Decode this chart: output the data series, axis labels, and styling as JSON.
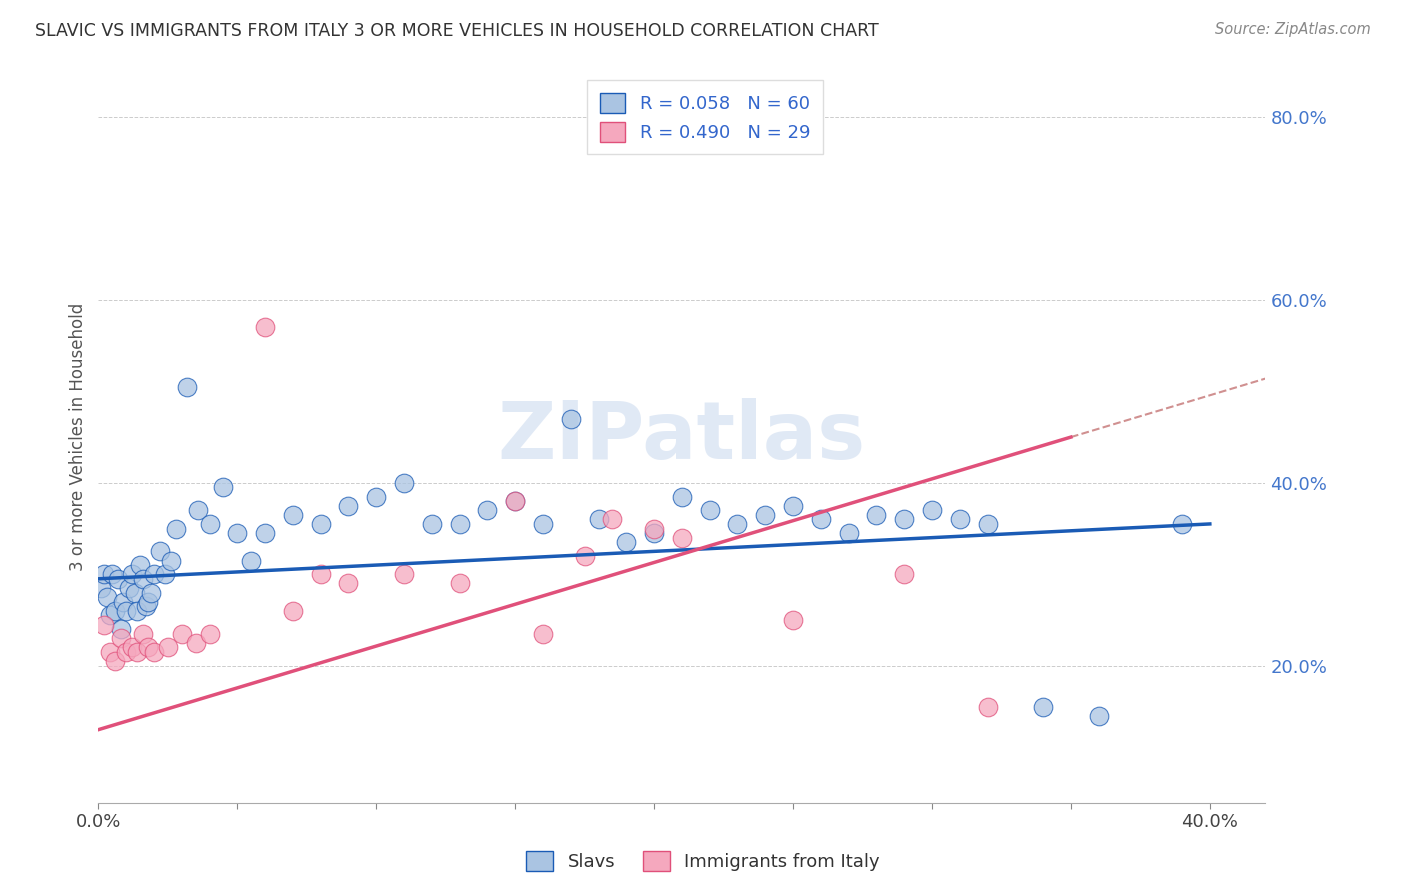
{
  "title": "SLAVIC VS IMMIGRANTS FROM ITALY 3 OR MORE VEHICLES IN HOUSEHOLD CORRELATION CHART",
  "source": "Source: ZipAtlas.com",
  "ylabel_label": "3 or more Vehicles in Household",
  "xlim": [
    0.0,
    0.42
  ],
  "ylim": [
    0.05,
    0.85
  ],
  "slavs_color": "#aac4e2",
  "italy_color": "#f5a8be",
  "slavs_line_color": "#1a5bb5",
  "italy_line_color": "#e0507a",
  "slavs_R": 0.058,
  "slavs_N": 60,
  "italy_R": 0.49,
  "italy_N": 29,
  "legend_label_slavs": "Slavs",
  "legend_label_italy": "Immigrants from Italy",
  "watermark": "ZIPatlas",
  "slavs_x": [
    0.001,
    0.002,
    0.003,
    0.004,
    0.005,
    0.006,
    0.007,
    0.008,
    0.009,
    0.01,
    0.011,
    0.012,
    0.013,
    0.014,
    0.015,
    0.016,
    0.017,
    0.018,
    0.019,
    0.02,
    0.022,
    0.024,
    0.026,
    0.028,
    0.032,
    0.036,
    0.04,
    0.045,
    0.05,
    0.055,
    0.06,
    0.07,
    0.08,
    0.09,
    0.1,
    0.11,
    0.12,
    0.13,
    0.14,
    0.15,
    0.16,
    0.17,
    0.18,
    0.19,
    0.2,
    0.21,
    0.22,
    0.23,
    0.24,
    0.25,
    0.26,
    0.27,
    0.28,
    0.29,
    0.3,
    0.31,
    0.32,
    0.34,
    0.36,
    0.39
  ],
  "slavs_y": [
    0.285,
    0.3,
    0.275,
    0.255,
    0.3,
    0.26,
    0.295,
    0.24,
    0.27,
    0.26,
    0.285,
    0.3,
    0.28,
    0.26,
    0.31,
    0.295,
    0.265,
    0.27,
    0.28,
    0.3,
    0.325,
    0.3,
    0.315,
    0.35,
    0.505,
    0.37,
    0.355,
    0.395,
    0.345,
    0.315,
    0.345,
    0.365,
    0.355,
    0.375,
    0.385,
    0.4,
    0.355,
    0.355,
    0.37,
    0.38,
    0.355,
    0.47,
    0.36,
    0.335,
    0.345,
    0.385,
    0.37,
    0.355,
    0.365,
    0.375,
    0.36,
    0.345,
    0.365,
    0.36,
    0.37,
    0.36,
    0.355,
    0.155,
    0.145,
    0.355
  ],
  "italy_x": [
    0.002,
    0.004,
    0.006,
    0.008,
    0.01,
    0.012,
    0.014,
    0.016,
    0.018,
    0.02,
    0.025,
    0.03,
    0.035,
    0.04,
    0.06,
    0.07,
    0.08,
    0.09,
    0.11,
    0.13,
    0.15,
    0.16,
    0.175,
    0.185,
    0.2,
    0.21,
    0.25,
    0.29,
    0.32
  ],
  "italy_y": [
    0.245,
    0.215,
    0.205,
    0.23,
    0.215,
    0.22,
    0.215,
    0.235,
    0.22,
    0.215,
    0.22,
    0.235,
    0.225,
    0.235,
    0.57,
    0.26,
    0.3,
    0.29,
    0.3,
    0.29,
    0.38,
    0.235,
    0.32,
    0.36,
    0.35,
    0.34,
    0.25,
    0.3,
    0.155
  ]
}
